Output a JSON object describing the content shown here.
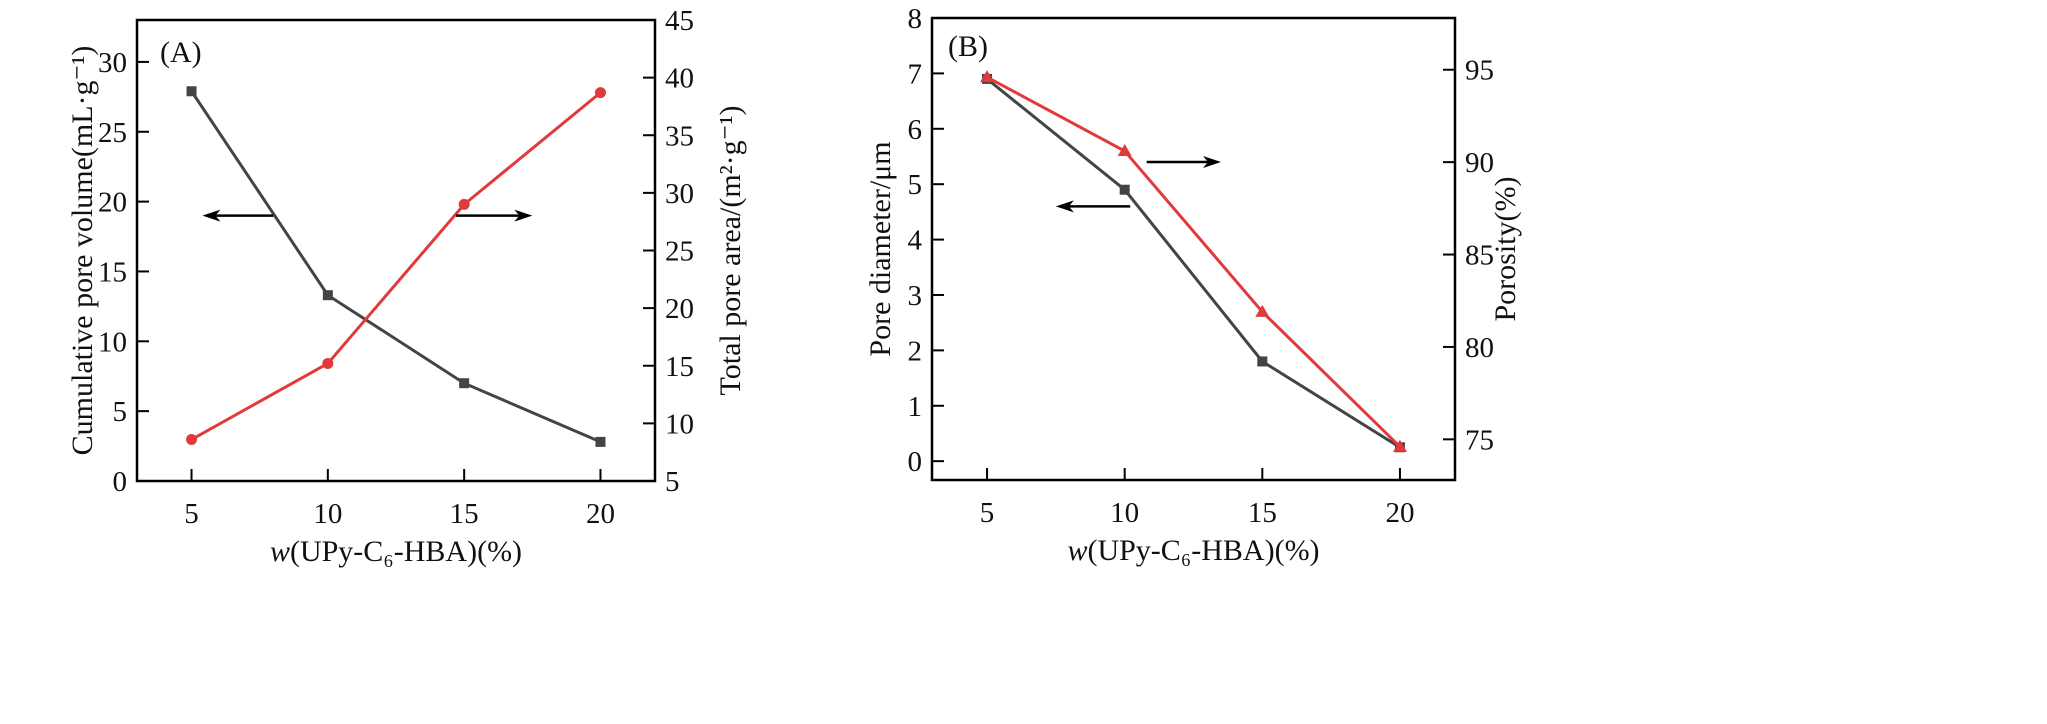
{
  "chart_data": [
    {
      "type": "line",
      "panel_label": "(A)",
      "x": [
        5,
        10,
        15,
        20
      ],
      "xlim": [
        3,
        22
      ],
      "xticks": [
        5,
        10,
        15,
        20
      ],
      "xlabel_italic": "w",
      "xlabel_rest": "(UPy-C₆-HBA)(%)",
      "ylabel_left": "Cumulative pore volume(mL·g⁻¹)",
      "ylabel_right": "Total pore area/(m²·g⁻¹)",
      "ylim_left": [
        0,
        33
      ],
      "yticks_left": [
        0,
        5,
        10,
        15,
        20,
        25,
        30
      ],
      "ylim_right": [
        5,
        45
      ],
      "yticks_right": [
        5,
        10,
        15,
        20,
        25,
        30,
        35,
        40,
        45
      ],
      "grid": false,
      "series": [
        {
          "name": "Cumulative pore volume",
          "axis": "left",
          "marker": "square",
          "color": "#444444",
          "values": [
            27.9,
            13.3,
            7.0,
            2.8
          ]
        },
        {
          "name": "Total pore area",
          "axis": "right",
          "marker": "circle",
          "color": "#e03a3a",
          "values": [
            8.6,
            15.2,
            29.0,
            38.7
          ]
        }
      ],
      "annotations": [
        {
          "type": "arrow",
          "direction": "left",
          "points_to": "left axis",
          "x_from": 8,
          "x_to": 5.4,
          "y_left": 19.0
        },
        {
          "type": "arrow",
          "direction": "right",
          "points_to": "right axis",
          "x_from": 14.7,
          "x_to": 17.5,
          "y_left": 19.0
        }
      ]
    },
    {
      "type": "line",
      "panel_label": "(B)",
      "x": [
        5,
        10,
        15,
        20
      ],
      "xlim": [
        3,
        22
      ],
      "xticks": [
        5,
        10,
        15,
        20
      ],
      "xlabel_italic": "w",
      "xlabel_rest": "(UPy-C₆-HBA)(%)",
      "ylabel_left": "Pore diameter/μm",
      "ylabel_right": "Porosity(%)",
      "ylim_left": [
        -0.34,
        8
      ],
      "yticks_left": [
        0,
        1,
        2,
        3,
        4,
        5,
        6,
        7,
        8
      ],
      "ylim_right": [
        72.8,
        97.8
      ],
      "yticks_right": [
        75,
        80,
        85,
        90,
        95
      ],
      "grid": false,
      "series": [
        {
          "name": "Pore diameter",
          "axis": "left",
          "marker": "square",
          "color": "#444444",
          "values": [
            6.9,
            4.9,
            1.8,
            0.25
          ]
        },
        {
          "name": "Porosity",
          "axis": "right",
          "marker": "triangle",
          "color": "#e03a3a",
          "values": [
            94.6,
            90.6,
            81.9,
            74.6
          ]
        }
      ],
      "annotations": [
        {
          "type": "arrow",
          "direction": "left",
          "points_to": "left axis",
          "x_from": 10.2,
          "x_to": 7.5,
          "y_left": 4.6
        },
        {
          "type": "arrow",
          "direction": "right",
          "points_to": "right axis",
          "x_from": 10.8,
          "x_to": 13.5,
          "y_left": 5.4
        }
      ]
    }
  ]
}
